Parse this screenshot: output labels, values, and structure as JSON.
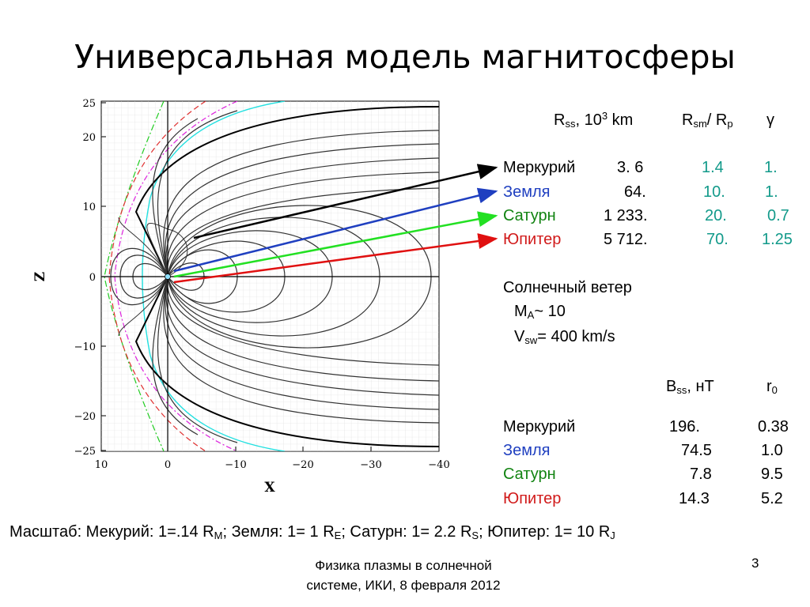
{
  "slide": {
    "title": "Универсальная модель магнитосферы",
    "footer_line1": "Физика плазмы в солнечной",
    "footer_line2": "системе, ИКИ, 8 февраля 2012",
    "page_number": "3"
  },
  "plot": {
    "xlabel": "X",
    "ylabel": "Z",
    "x_ticks": [
      "10",
      "0",
      "−10",
      "−20",
      "−30",
      "−40"
    ],
    "z_ticks": [
      "25",
      "20",
      "10",
      "0",
      "−10",
      "−20",
      "−25"
    ]
  },
  "table1": {
    "h_rss": "R",
    "h_rss_sub": "ss",
    "h_rss_unit": ", 10",
    "h_rss_sup": "3",
    "h_rss_km": " km",
    "h_rsm": "R",
    "h_rsm_sub": "sm",
    "h_rsm_div": "/ R",
    "h_rsm_sub2": "p",
    "h_gamma": "γ",
    "rows": [
      {
        "planet": "Меркурий",
        "rss": "3. 6",
        "rsm": "1.4",
        "gamma": "1."
      },
      {
        "planet": "Земля",
        "rss": "64.",
        "rsm": "10.",
        "gamma": "1."
      },
      {
        "planet": "Сатурн",
        "rss": "1 233.",
        "rsm": "20.",
        "gamma": "0.7"
      },
      {
        "planet": "Юпитер",
        "rss": "5 712.",
        "rsm": "70.",
        "gamma": "1.25"
      }
    ]
  },
  "wind": {
    "title": "Солнечный ветер",
    "ma": "M",
    "ma_sub": "A",
    "ma_val": "~ 10",
    "vsw": "V",
    "vsw_sub": "sw",
    "vsw_val": "= 400 km/s"
  },
  "table2": {
    "h_bss": "B",
    "h_bss_sub": "ss",
    "h_bss_unit": ", нТ",
    "h_r0": "r",
    "h_r0_sub": "0",
    "rows": [
      {
        "planet": "Меркурий",
        "bss": "196.",
        "r0": "0.38"
      },
      {
        "planet": "Земля",
        "bss": "74.5",
        "r0": "1.0"
      },
      {
        "planet": "Сатурн",
        "bss": "7.8",
        "r0": "9.5"
      },
      {
        "planet": "Юпитер",
        "bss": "14.3",
        "r0": "5.2"
      }
    ]
  },
  "scale": {
    "p1": "Масштаб: Мекурий: 1=.14 R",
    "s1": "M",
    "p2": "; Земля: 1= 1 R",
    "s2": "E",
    "p3": "; Сатурн: 1= 2.2 R",
    "s3": "S",
    "p4": "; Юпитер:  1= 10 R",
    "s4": "J"
  },
  "colors": {
    "mercury": "#000000",
    "earth": "#1f3fc0",
    "saturn": "#118311",
    "jupiter": "#d11a1a",
    "rsm_values": "#129a8a"
  }
}
